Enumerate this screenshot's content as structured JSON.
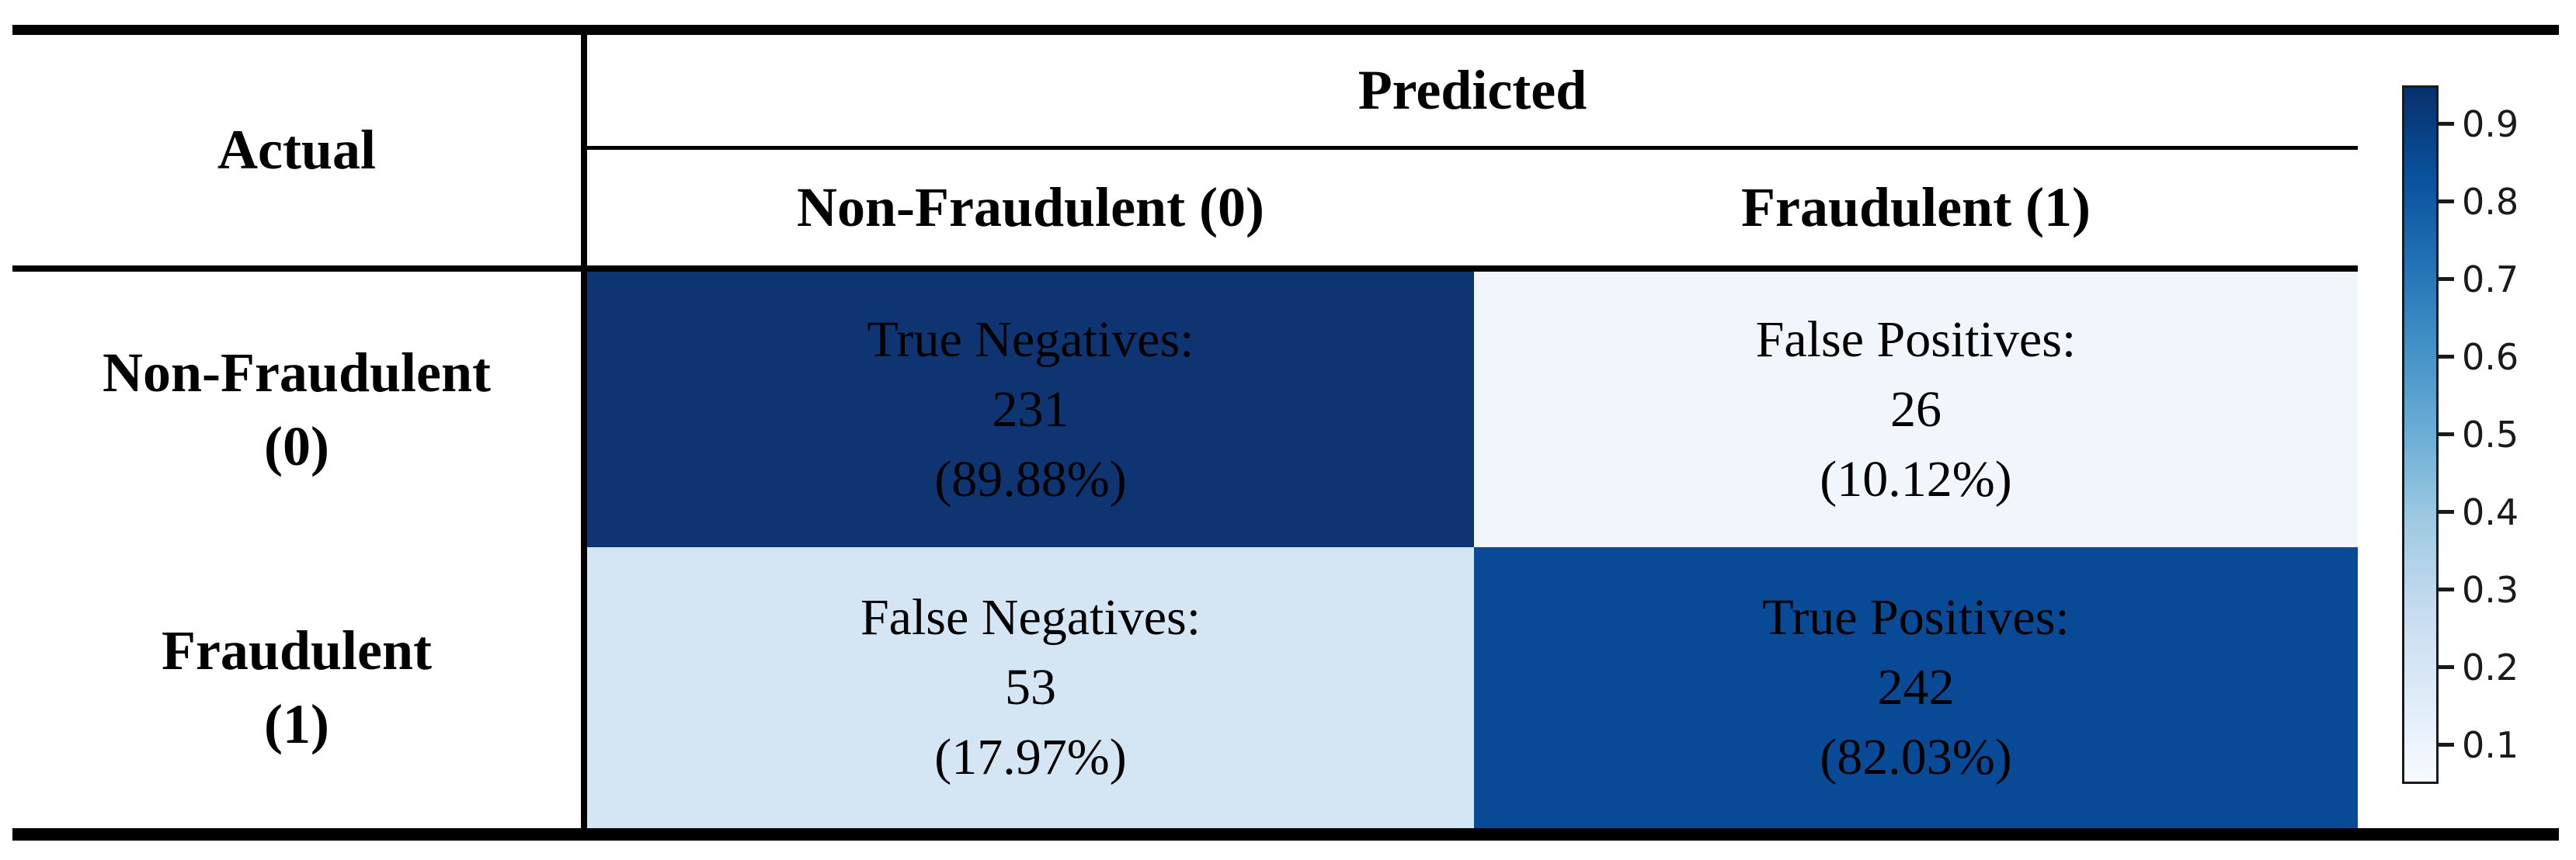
{
  "table": {
    "actual_label": "Actual",
    "predicted_label": "Predicted",
    "col_headers": [
      "Non-Fraudulent (0)",
      "Fraudulent (1)"
    ],
    "row_headers": [
      {
        "line1": "Non-Fraudulent",
        "line2": "(0)"
      },
      {
        "line1": "Fraudulent",
        "line2": "(1)"
      }
    ]
  },
  "cells": {
    "tn": {
      "label": "True Negatives:",
      "count": "231",
      "pct": "(89.88%)"
    },
    "fp": {
      "label": "False Positives:",
      "count": "26",
      "pct": "(10.12%)"
    },
    "fn": {
      "label": "False Negatives:",
      "count": "53",
      "pct": "(17.97%)"
    },
    "tp": {
      "label": "True Positives:",
      "count": "242",
      "pct": "(82.03%)"
    }
  },
  "colors": {
    "tn_bg": "#0e3572",
    "fp_bg": "#f0f6fc",
    "fn_bg": "#d4e5f3",
    "tp_bg": "#094a96",
    "rule": "#000000",
    "tick": "#1a1a1a"
  },
  "colorbar": {
    "ticks": [
      "0.9",
      "0.8",
      "0.7",
      "0.6",
      "0.5",
      "0.4",
      "0.3",
      "0.2",
      "0.1"
    ],
    "gradient": [
      "#08306b",
      "#08519c",
      "#2171b5",
      "#4292c6",
      "#6baed6",
      "#9ecae1",
      "#c6dbef",
      "#deebf7",
      "#f7fbff"
    ]
  },
  "chart_data": {
    "type": "heatmap",
    "title": "Confusion matrix of Actual vs Predicted fraud classification",
    "xlabel": "Predicted",
    "ylabel": "Actual",
    "x_categories": [
      "Non-Fraudulent (0)",
      "Fraudulent (1)"
    ],
    "y_categories": [
      "Non-Fraudulent (0)",
      "Fraudulent (1)"
    ],
    "cells": [
      {
        "actual": "Non-Fraudulent (0)",
        "predicted": "Non-Fraudulent (0)",
        "label": "True Negatives",
        "count": 231,
        "percent": 89.88
      },
      {
        "actual": "Non-Fraudulent (0)",
        "predicted": "Fraudulent (1)",
        "label": "False Positives",
        "count": 26,
        "percent": 10.12
      },
      {
        "actual": "Fraudulent (1)",
        "predicted": "Non-Fraudulent (0)",
        "label": "False Negatives",
        "count": 53,
        "percent": 17.97
      },
      {
        "actual": "Fraudulent (1)",
        "predicted": "Fraudulent (1)",
        "label": "True Positives",
        "count": 242,
        "percent": 82.03
      }
    ],
    "matrix_counts": [
      [
        231,
        26
      ],
      [
        53,
        242
      ]
    ],
    "matrix_row_proportions": [
      [
        0.8988,
        0.1012
      ],
      [
        0.1797,
        0.8203
      ]
    ],
    "colormap": "Blues",
    "colorbar_ticks": [
      0.9,
      0.8,
      0.7,
      0.6,
      0.5,
      0.4,
      0.3,
      0.2,
      0.1
    ],
    "colorbar_range": [
      0.05,
      0.95
    ],
    "legend_position": "right"
  }
}
